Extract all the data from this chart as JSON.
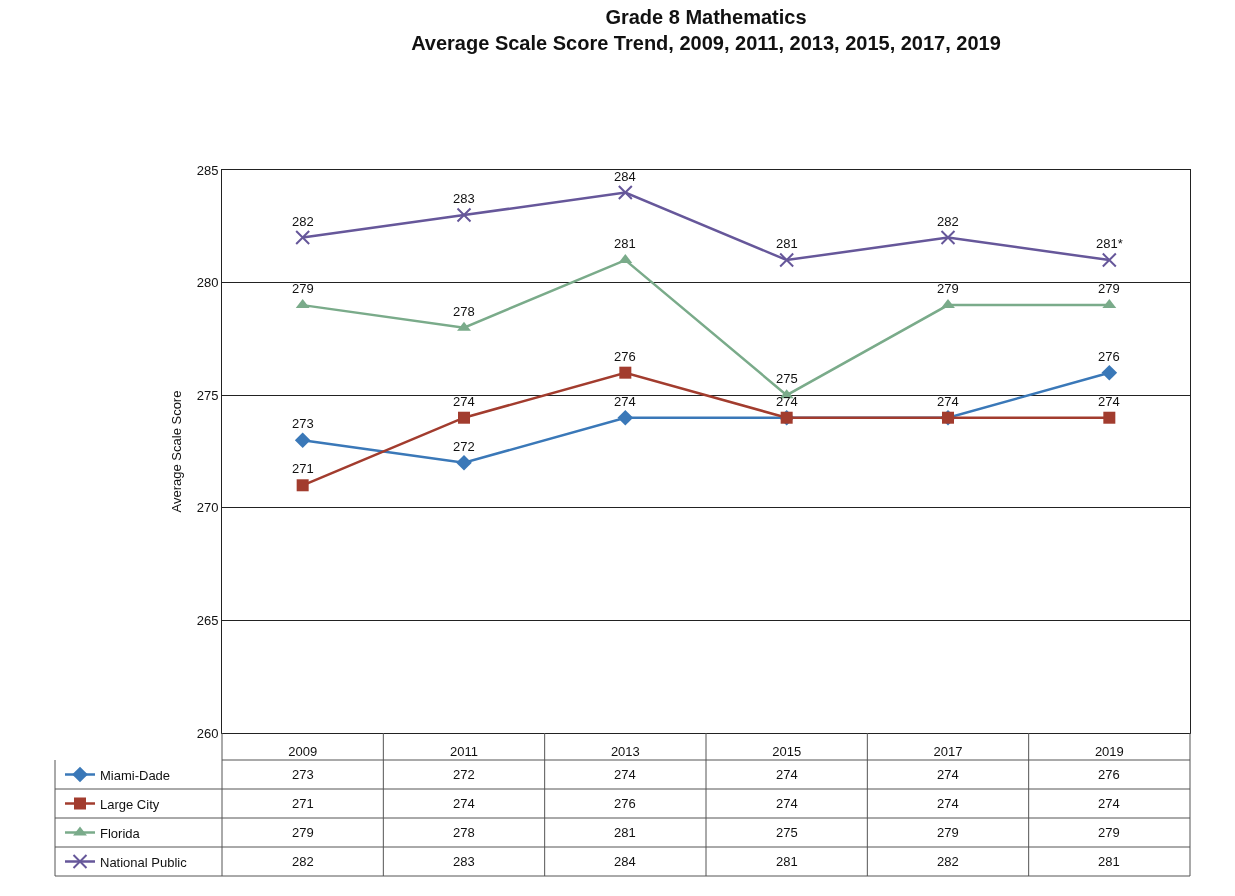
{
  "chart_data": {
    "type": "line",
    "title": "Grade 8 Mathematics",
    "subtitle": "Average Scale Score Trend, 2009, 2011, 2013, 2015, 2017, 2019",
    "ylabel": "Average Scale Score",
    "categories": [
      "2009",
      "2011",
      "2013",
      "2015",
      "2017",
      "2019"
    ],
    "series": [
      {
        "name": "Miami-Dade",
        "color": "#3a78b8",
        "marker": "diamond",
        "values": [
          273,
          272,
          274,
          274,
          274,
          276
        ]
      },
      {
        "name": "Large City",
        "color": "#a23c2e",
        "marker": "square",
        "values": [
          271,
          274,
          276,
          274,
          274,
          274
        ]
      },
      {
        "name": "Florida",
        "color": "#7aab8a",
        "marker": "triangle",
        "values": [
          279,
          278,
          281,
          275,
          279,
          279
        ]
      },
      {
        "name": "National Public",
        "color": "#66579a",
        "marker": "cross",
        "values": [
          282,
          283,
          284,
          281,
          282,
          281
        ]
      }
    ],
    "annotations": [
      {
        "text": "273",
        "x": "2009",
        "y": 273
      },
      {
        "text": "272",
        "x": "2011",
        "y": 272
      },
      {
        "text": "274",
        "x": "2013",
        "y": 274
      },
      {
        "text": "274",
        "x": "2015",
        "y": 274
      },
      {
        "text": "274",
        "x": "2017",
        "y": 274
      },
      {
        "text": "276",
        "x": "2019",
        "y": 276
      },
      {
        "text": "271",
        "x": "2009",
        "y": 271
      },
      {
        "text": "274",
        "x": "2011",
        "y": 274
      },
      {
        "text": "276",
        "x": "2013",
        "y": 276
      },
      {
        "text": "274",
        "x": "2019",
        "y": 274
      },
      {
        "text": "279",
        "x": "2009",
        "y": 279
      },
      {
        "text": "278",
        "x": "2011",
        "y": 278
      },
      {
        "text": "281",
        "x": "2013",
        "y": 281
      },
      {
        "text": "275",
        "x": "2015",
        "y": 275
      },
      {
        "text": "279",
        "x": "2017",
        "y": 279
      },
      {
        "text": "279",
        "x": "2019",
        "y": 279
      },
      {
        "text": "282",
        "x": "2009",
        "y": 282
      },
      {
        "text": "283",
        "x": "2011",
        "y": 283
      },
      {
        "text": "284",
        "x": "2013",
        "y": 284
      },
      {
        "text": "281",
        "x": "2015",
        "y": 281
      },
      {
        "text": "282",
        "x": "2017",
        "y": 282
      },
      {
        "text": "281*",
        "x": "2019",
        "y": 281
      }
    ],
    "ylim": [
      260,
      285
    ],
    "yticks": [
      260,
      265,
      270,
      275,
      280,
      285
    ],
    "grid": "y",
    "legend": "bottom left",
    "data_labels": true,
    "line_style": "solid"
  }
}
